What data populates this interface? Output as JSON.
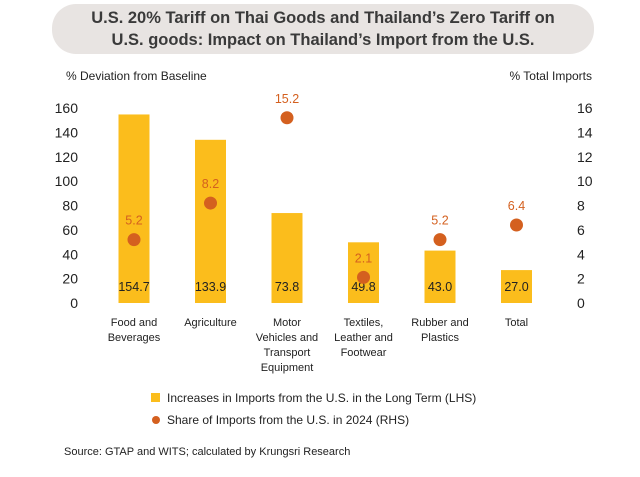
{
  "title": {
    "line1": "U.S. 20% Tariff on Thai Goods and Thailand’s Zero Tariff on",
    "line2": "U.S. goods: Impact on Thailand’s Import from the U.S."
  },
  "source": "Source: GTAP and WITS; calculated by Krungsri Research",
  "colors": {
    "bar": "#fbbd1c",
    "dot": "#d4601f",
    "dot_label": "#d4601f",
    "title_bg": "#e8e4e2"
  },
  "chart_data": {
    "type": "bar",
    "categories": [
      [
        "Food and",
        "Beverages"
      ],
      [
        "Agriculture"
      ],
      [
        "Motor",
        "Vehicles and",
        "Transport",
        "Equipment"
      ],
      [
        "Textiles,",
        "Leather and",
        "Footwear"
      ],
      [
        "Rubber and",
        "Plastics"
      ],
      [
        "Total"
      ]
    ],
    "ylabel_left": "% Deviation from Baseline",
    "ylabel_right": "% Total Imports",
    "ylim_left": [
      0,
      160
    ],
    "ylim_right": [
      0,
      16
    ],
    "yticks_left": [
      0,
      20,
      40,
      60,
      80,
      100,
      120,
      140,
      160
    ],
    "yticks_right": [
      0,
      2,
      4,
      6,
      8,
      10,
      12,
      14,
      16
    ],
    "grid": false,
    "legend_position": "bottom",
    "series": [
      {
        "name": "Increases in Imports from the U.S. in the Long Term (LHS)",
        "type": "bar",
        "axis": "left",
        "values": [
          154.7,
          133.9,
          73.8,
          49.8,
          43.0,
          27.0
        ],
        "labels": [
          "154.7",
          "133.9",
          "73.8",
          "49.8",
          "43.0",
          "27.0"
        ]
      },
      {
        "name": "Share of Imports from the U.S. in 2024 (RHS)",
        "type": "scatter",
        "axis": "right",
        "values": [
          5.2,
          8.2,
          15.2,
          2.1,
          5.2,
          6.4
        ],
        "labels": [
          "5.2",
          "8.2",
          "15.2",
          "2.1",
          "5.2",
          "6.4"
        ]
      }
    ]
  }
}
